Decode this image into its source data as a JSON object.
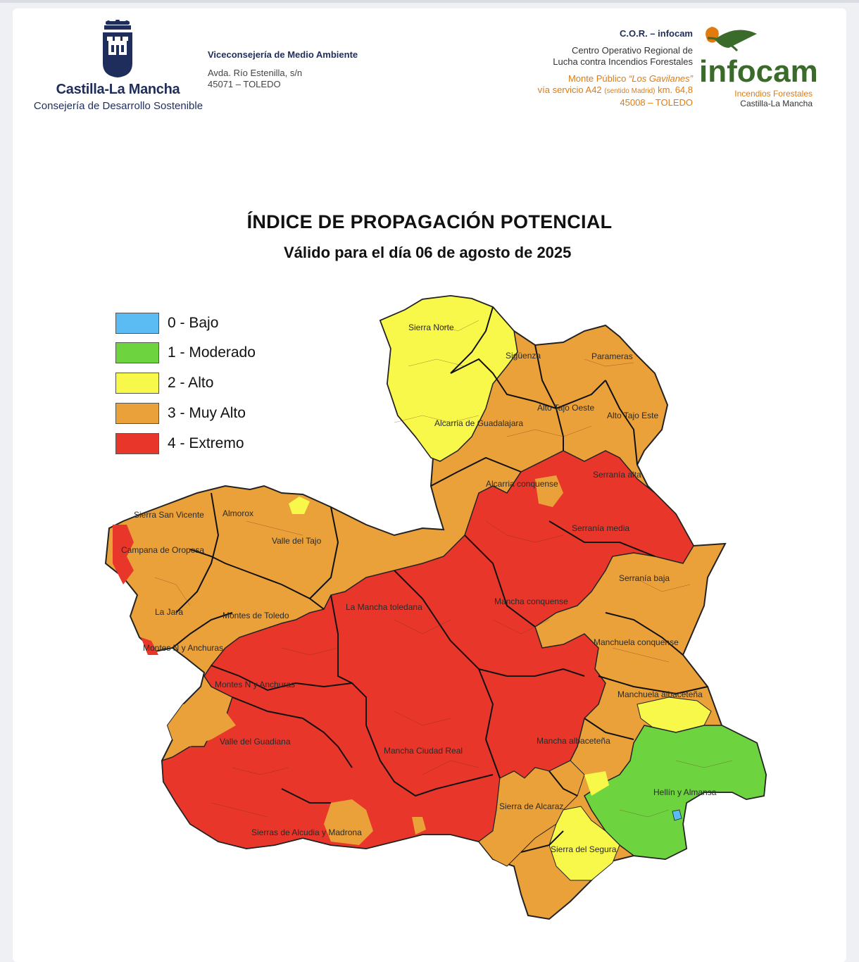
{
  "header": {
    "region_name": "Castilla-La Mancha",
    "department": "Consejería de Desarrollo Sostenible",
    "vice_title": "Viceconsejería de Medio Ambiente",
    "vice_address_1": "Avda. Río Estenilla, s/n",
    "vice_address_2": "45071 – TOLEDO",
    "cor_title": "C.O.R. – infocam",
    "cor_line_1": "Centro Operativo Regional de",
    "cor_line_2": "Lucha contra Incendios Forestales",
    "cor_line_3a": "Monte Público ",
    "cor_line_3b": "“Los Gavilanes”",
    "cor_line_4a": "vía servicio A42 ",
    "cor_line_4b": "(sentido Madrid)",
    "cor_line_4c": " km. 64,8",
    "cor_line_5": "45008 – TOLEDO",
    "infocam_logo_text": "infocam",
    "infocam_sub_1": "Incendios Forestales",
    "infocam_sub_2": "Castilla-La Mancha"
  },
  "title": "ÍNDICE DE PROPAGACIÓN POTENCIAL",
  "subtitle": "Válido para el día  06 de agosto de 2025",
  "legend": [
    {
      "label": "0 - Bajo",
      "color": "#5bbcf3"
    },
    {
      "label": "1 - Moderado",
      "color": "#6dd33f"
    },
    {
      "label": "2 - Alto",
      "color": "#f8f84a"
    },
    {
      "label": "3 - Muy Alto",
      "color": "#eba139"
    },
    {
      "label": "4 - Extremo",
      "color": "#e8372a"
    }
  ],
  "map_labels": [
    "Sierra Norte",
    "Sigüenza",
    "Parameras",
    "Alto Tajo Oeste",
    "Alto Tajo Este",
    "Alcarria de Guadalajara",
    "Alcarria conquense",
    "Serranía alta",
    "Serranía media",
    "Sierra San Vicente",
    "Almorox",
    "Valle del Tajo",
    "Campana de Oropesa",
    "Serranía baja",
    "La Jara",
    "Montes de Toledo",
    "La Mancha toledana",
    "Mancha conquense",
    "Montes N y Anchuras",
    "Manchuela conquense",
    "Montes N y Anchuras",
    "Manchuela albaceteña",
    "Valle del Guadiana",
    "Mancha Ciudad Real",
    "Mancha albaceteña",
    "Hellín y Almansa",
    "Sierra de Alcaraz",
    "Sierras de Alcudia y Madrona",
    "Sierra del Segura"
  ]
}
